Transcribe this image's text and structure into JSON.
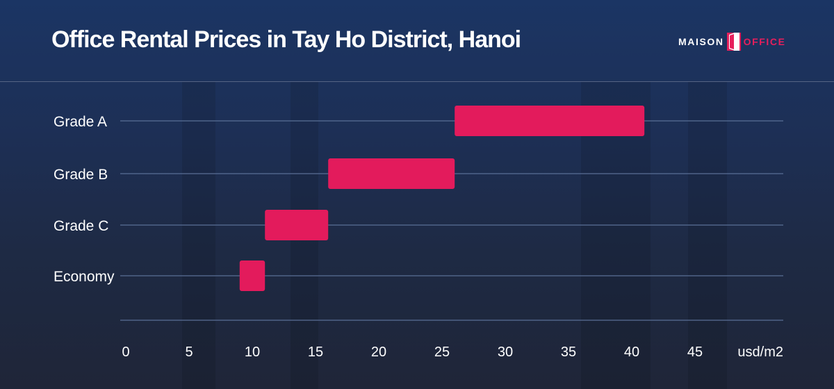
{
  "header": {
    "title": "Office Rental Prices in Tay Ho District, Hanoi",
    "logo": {
      "left_text": "MAISON",
      "right_text": "OFFICE"
    }
  },
  "colors": {
    "bar": "#e31b5c",
    "gridline": "#5a6f96",
    "text": "#ffffff"
  },
  "chart_data": {
    "type": "bar",
    "orientation": "horizontal-range",
    "title": "Office Rental Prices in Tay Ho District, Hanoi",
    "xlabel": "usd/m2",
    "ylabel": "",
    "xlim": [
      0,
      50
    ],
    "xticks": [
      0,
      5,
      10,
      15,
      20,
      25,
      30,
      35,
      40,
      45
    ],
    "xtick_labels": [
      "0",
      "5",
      "10",
      "15",
      "20",
      "25",
      "30",
      "35",
      "40",
      "45"
    ],
    "grid": "horizontal",
    "categories": [
      "Grade A",
      "Grade B",
      "Grade C",
      "Economy"
    ],
    "ranges": [
      {
        "category": "Grade A",
        "min": 26,
        "max": 41
      },
      {
        "category": "Grade B",
        "min": 16,
        "max": 26
      },
      {
        "category": "Grade C",
        "min": 11,
        "max": 16
      },
      {
        "category": "Economy",
        "min": 9,
        "max": 11
      }
    ]
  }
}
